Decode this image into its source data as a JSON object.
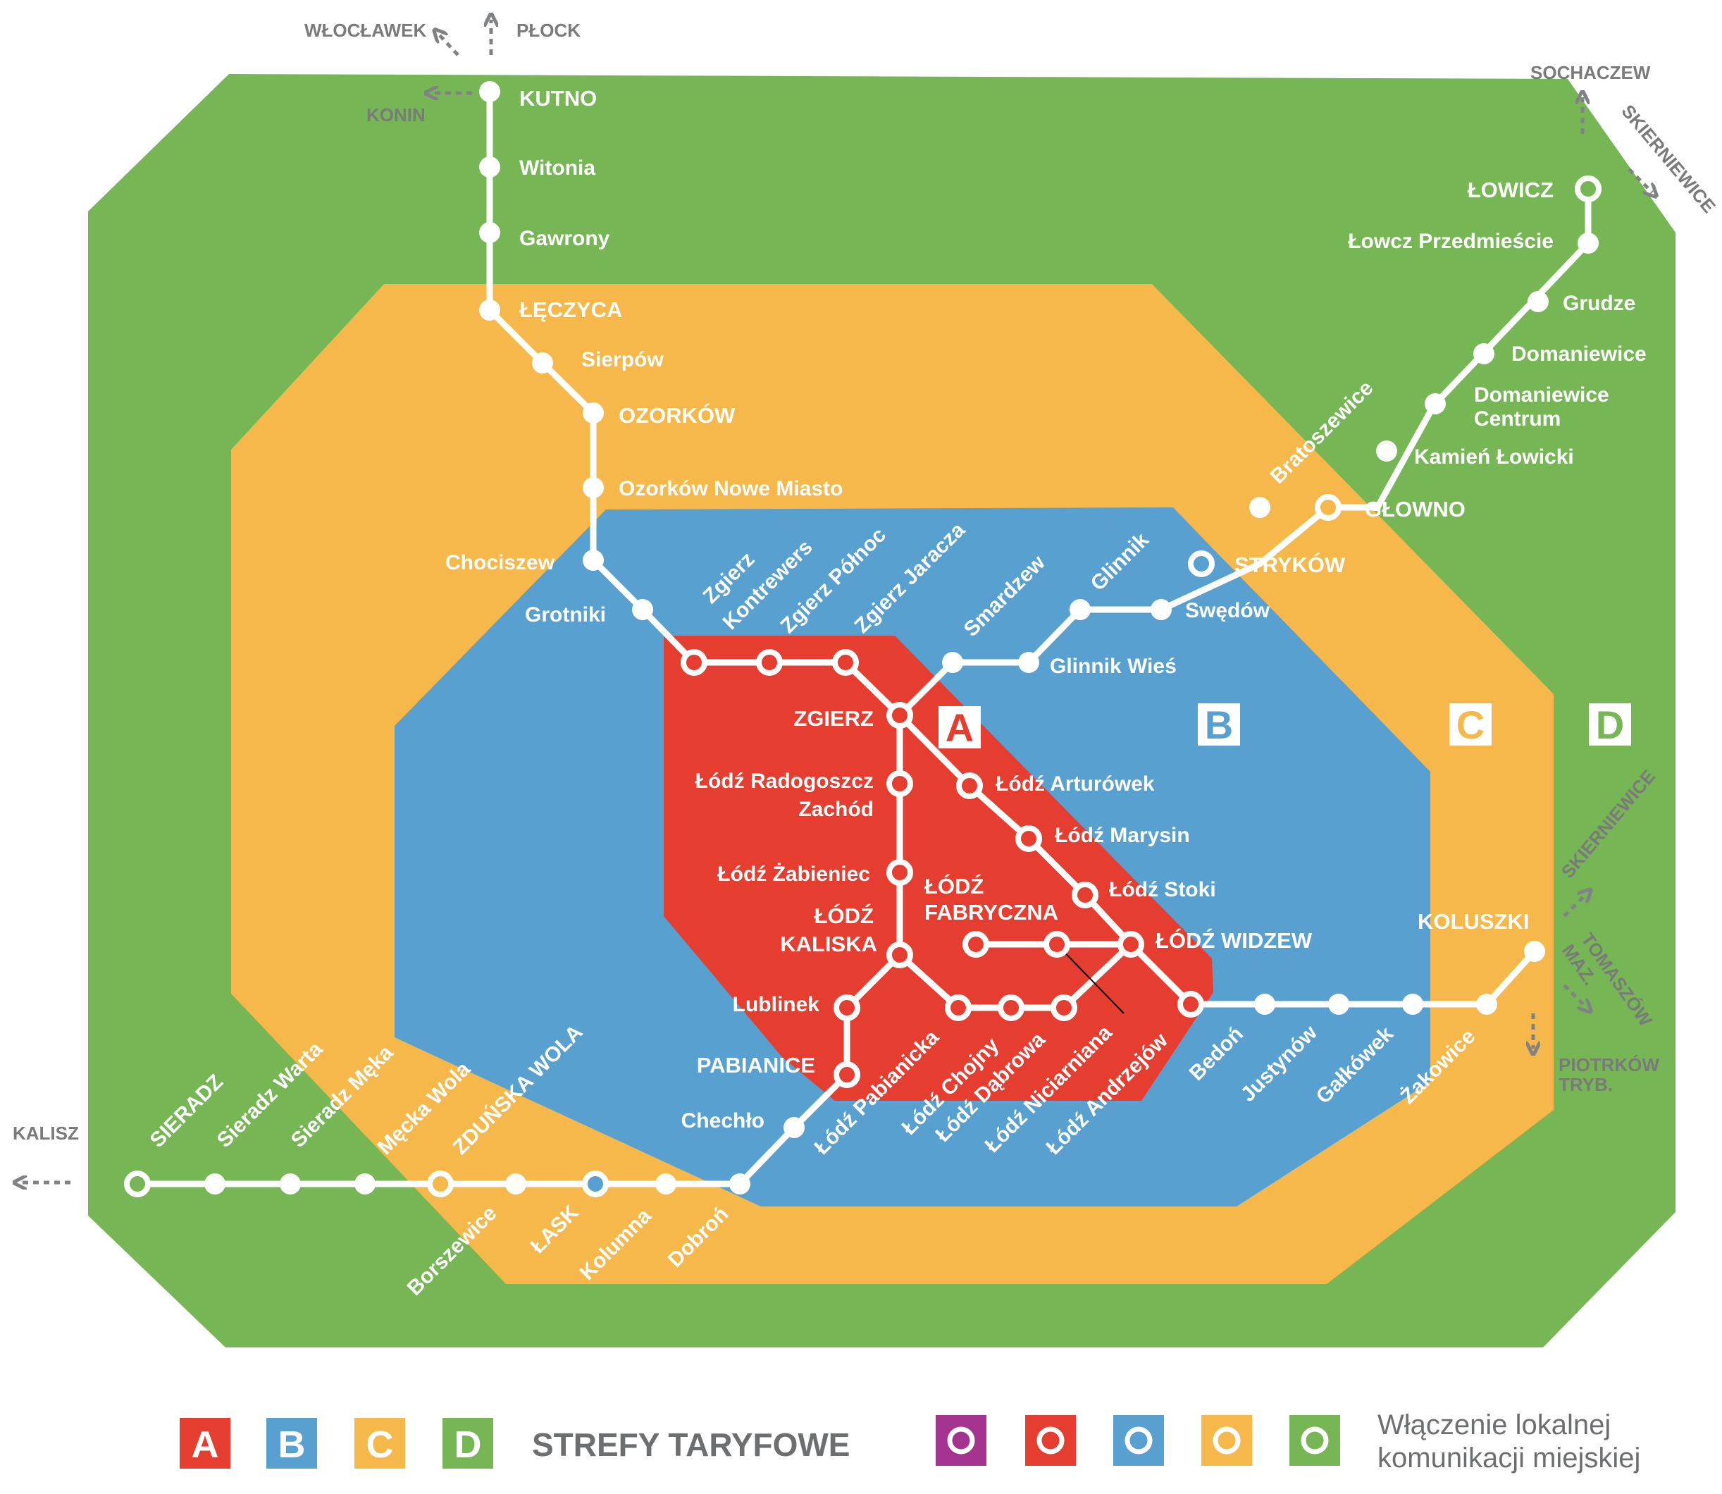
{
  "colors": {
    "zone_a": "#e53e30",
    "zone_b": "#57a0d0",
    "zone_c": "#f7b84b",
    "zone_d": "#76b655",
    "line": "#ffffff",
    "external": "#808285",
    "legend_text": "#6d6e70",
    "legend_purple": "#a3338f"
  },
  "zones": {
    "a": "A",
    "b": "B",
    "c": "C",
    "d": "D"
  },
  "stations": {
    "kutno": "KUTNO",
    "witonia": "Witonia",
    "gawrony": "Gawrony",
    "leczyca": "ŁĘCZYCA",
    "sierpow": "Sierpów",
    "ozorkow": "OZORKÓW",
    "ozorkow_nm": "Ozorków Nowe Miasto",
    "chociszew": "Chociszew",
    "grotniki": "Grotniki",
    "zgierz_kontrewers_1": "Zgierz",
    "zgierz_kontrewers_2": "Kontrewers",
    "zgierz_polnoc": "Zgierz Północ",
    "zgierz_jaracza": "Zgierz Jaracza",
    "smardzew": "Smardzew",
    "glinnik": "Glinnik",
    "glinnik_wies": "Glinnik Wieś",
    "swedow": "Swędów",
    "strykow": "STRYKÓW",
    "bratoszewice": "Bratoszewice",
    "glowno": "GŁOWNO",
    "kamien_lowicki": "Kamień Łowicki",
    "domaniewice_centrum_1": "Domaniewice",
    "domaniewice_centrum_2": "Centrum",
    "domaniewice": "Domaniewice",
    "grudze": "Grudze",
    "lowicz_przedmiescie": "Łowcz Przedmieście",
    "lowicz": "ŁOWICZ",
    "zgierz": "ZGIERZ",
    "radogoszcz_1": "Łódź Radogoszcz",
    "radogoszcz_2": "Zachód",
    "zabieniec": "Łódź Żabieniec",
    "kaliska_1": "ŁÓDŹ",
    "kaliska_2": "KALISKA",
    "fabryczna_1": "ŁÓDŹ",
    "fabryczna_2": "FABRYCZNA",
    "arturowek": "Łódź Arturówek",
    "marysin": "Łódź Marysin",
    "stoki": "Łódź Stoki",
    "widzew": "ŁÓDŹ WIDZEW",
    "lublinek": "Lublinek",
    "pabianice": "PABIANICE",
    "chechlo": "Chechło",
    "lodz_pabianicka": "Łódź Pabianicka",
    "lodz_chojny": "Łódź Chojny",
    "lodz_dabrowa": "Łódź Dąbrowa",
    "lodz_niciarniana": "Łódź Niciarniana",
    "lodz_andrzejow": "Łódź Andrzejów",
    "bedon": "Bedoń",
    "justynow": "Justynów",
    "galkowek": "Gałkówek",
    "zakowice": "Żakowice",
    "koluszki": "KOLUSZKI",
    "sieradz": "SIERADZ",
    "sieradz_warta": "Sieradz Warta",
    "sieradz_meka": "Sieradz Męka",
    "mecka_wola": "Męcka Wola",
    "zdunska_wola": "ZDUŃSKA WOLA",
    "borszewice": "Borszewice",
    "lask": "ŁASK",
    "kolumna": "Kolumna",
    "dobron": "Dobroń"
  },
  "external": {
    "wloclawek": "WŁOCŁAWEK",
    "plock": "PŁOCK",
    "konin": "KONIN",
    "sochaczew": "SOCHACZEW",
    "skierniewice_top": "SKIERNIEWICE",
    "skierniewice_right": "SKIERNIEWICE",
    "tomaszow_1": "TOMASZÓW",
    "tomaszow_2": "MAZ.",
    "piotrkow_1": "PIOTRKÓW",
    "piotrkow_2": "TRYB.",
    "kalisz": "KALISZ"
  },
  "legend": {
    "zones": [
      "A",
      "B",
      "C",
      "D"
    ],
    "title": "STREFY TARYFOWE",
    "note_line1": "Włączenie lokalnej",
    "note_line2": "komunikacji miejskiej"
  }
}
